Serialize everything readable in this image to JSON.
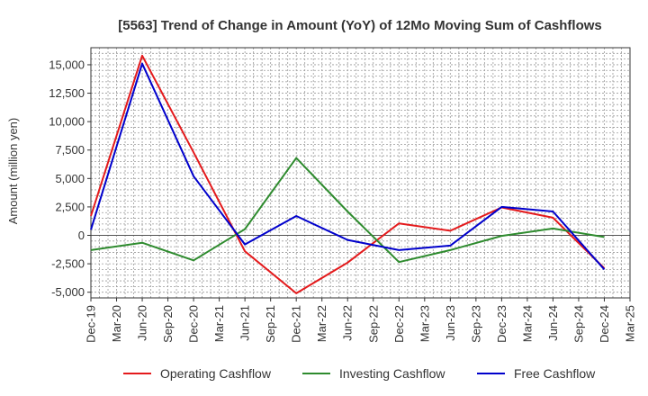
{
  "chart_data": {
    "type": "line",
    "title": "[5563]  Trend of Change in Amount (YoY) of 12Mo Moving Sum of Cashflows",
    "xlabel": "",
    "ylabel": "Amount (million yen)",
    "ylim": [
      -5500,
      16500
    ],
    "y_ticks": [
      -5000,
      -2500,
      0,
      2500,
      5000,
      7500,
      10000,
      12500,
      15000
    ],
    "y_tick_labels": [
      "-5,000",
      "-2,500",
      "0",
      "2,500",
      "5,000",
      "7,500",
      "10,000",
      "12,500",
      "15,000"
    ],
    "categories": [
      "Dec-19",
      "Mar-20",
      "Jun-20",
      "Sep-20",
      "Dec-20",
      "Mar-21",
      "Jun-21",
      "Sep-21",
      "Dec-21",
      "Mar-22",
      "Jun-22",
      "Sep-22",
      "Dec-22",
      "Mar-23",
      "Jun-23",
      "Sep-23",
      "Dec-23",
      "Mar-24",
      "Jun-24",
      "Sep-24",
      "Dec-24",
      "Mar-25"
    ],
    "grid": true,
    "legend_position": "bottom",
    "series": [
      {
        "name": "Operating Cashflow",
        "color": "#e41a1c",
        "points": [
          {
            "x": "Dec-19",
            "y": 1700
          },
          {
            "x": "Jun-20",
            "y": 15800
          },
          {
            "x": "Dec-20",
            "y": 7300
          },
          {
            "x": "Jun-21",
            "y": -1400
          },
          {
            "x": "Dec-21",
            "y": -5100
          },
          {
            "x": "Jun-22",
            "y": -2400
          },
          {
            "x": "Dec-22",
            "y": 1050
          },
          {
            "x": "Jun-23",
            "y": 400
          },
          {
            "x": "Dec-23",
            "y": 2450
          },
          {
            "x": "Jun-24",
            "y": 1550
          },
          {
            "x": "Dec-24",
            "y": -2900
          }
        ]
      },
      {
        "name": "Investing Cashflow",
        "color": "#2e8b2e",
        "points": [
          {
            "x": "Dec-19",
            "y": -1300
          },
          {
            "x": "Jun-20",
            "y": -650
          },
          {
            "x": "Dec-20",
            "y": -2200
          },
          {
            "x": "Jun-21",
            "y": 550
          },
          {
            "x": "Dec-21",
            "y": 6800
          },
          {
            "x": "Jun-22",
            "y": 2100
          },
          {
            "x": "Dec-22",
            "y": -2350
          },
          {
            "x": "Jun-23",
            "y": -1300
          },
          {
            "x": "Dec-23",
            "y": -50
          },
          {
            "x": "Jun-24",
            "y": 600
          },
          {
            "x": "Dec-24",
            "y": -150
          }
        ]
      },
      {
        "name": "Free Cashflow",
        "color": "#0000cc",
        "points": [
          {
            "x": "Dec-19",
            "y": 500
          },
          {
            "x": "Jun-20",
            "y": 15100
          },
          {
            "x": "Dec-20",
            "y": 5200
          },
          {
            "x": "Jun-21",
            "y": -800
          },
          {
            "x": "Dec-21",
            "y": 1700
          },
          {
            "x": "Jun-22",
            "y": -400
          },
          {
            "x": "Dec-22",
            "y": -1300
          },
          {
            "x": "Jun-23",
            "y": -900
          },
          {
            "x": "Dec-23",
            "y": 2500
          },
          {
            "x": "Jun-24",
            "y": 2100
          },
          {
            "x": "Dec-24",
            "y": -3000
          }
        ]
      }
    ]
  }
}
